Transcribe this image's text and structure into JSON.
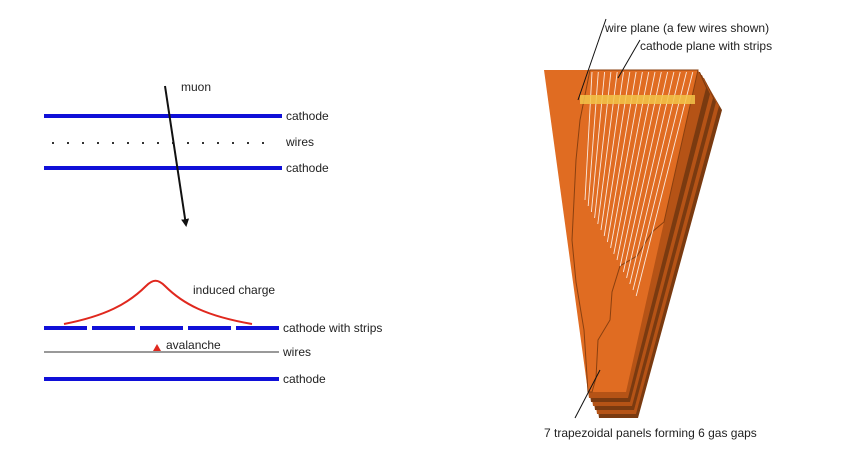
{
  "colors": {
    "cathode": "#1010d8",
    "wire": "#333333",
    "charge": "#e0281e",
    "avalanche": "#e0281e",
    "panel_front": "#e06c22",
    "panel_dark": "#b55316",
    "panel_edge": "#7a3a10",
    "strip_highlight": "#f2c44a",
    "muon": "#111111"
  },
  "left_top": {
    "muon_label": "muon",
    "cathode_top_label": "cathode",
    "wires_label": "wires",
    "cathode_bottom_label": "cathode"
  },
  "left_bottom": {
    "induced_charge_label": "induced charge",
    "cathode_strips_label": "cathode with strips",
    "avalanche_label": "avalanche",
    "wires_label": "wires",
    "cathode_label": "cathode"
  },
  "right": {
    "wire_plane_label": "wire plane (a few wires shown)",
    "cathode_plane_label": "cathode plane with strips",
    "panels_label": "7 trapezoidal panels forming 6 gas gaps"
  }
}
